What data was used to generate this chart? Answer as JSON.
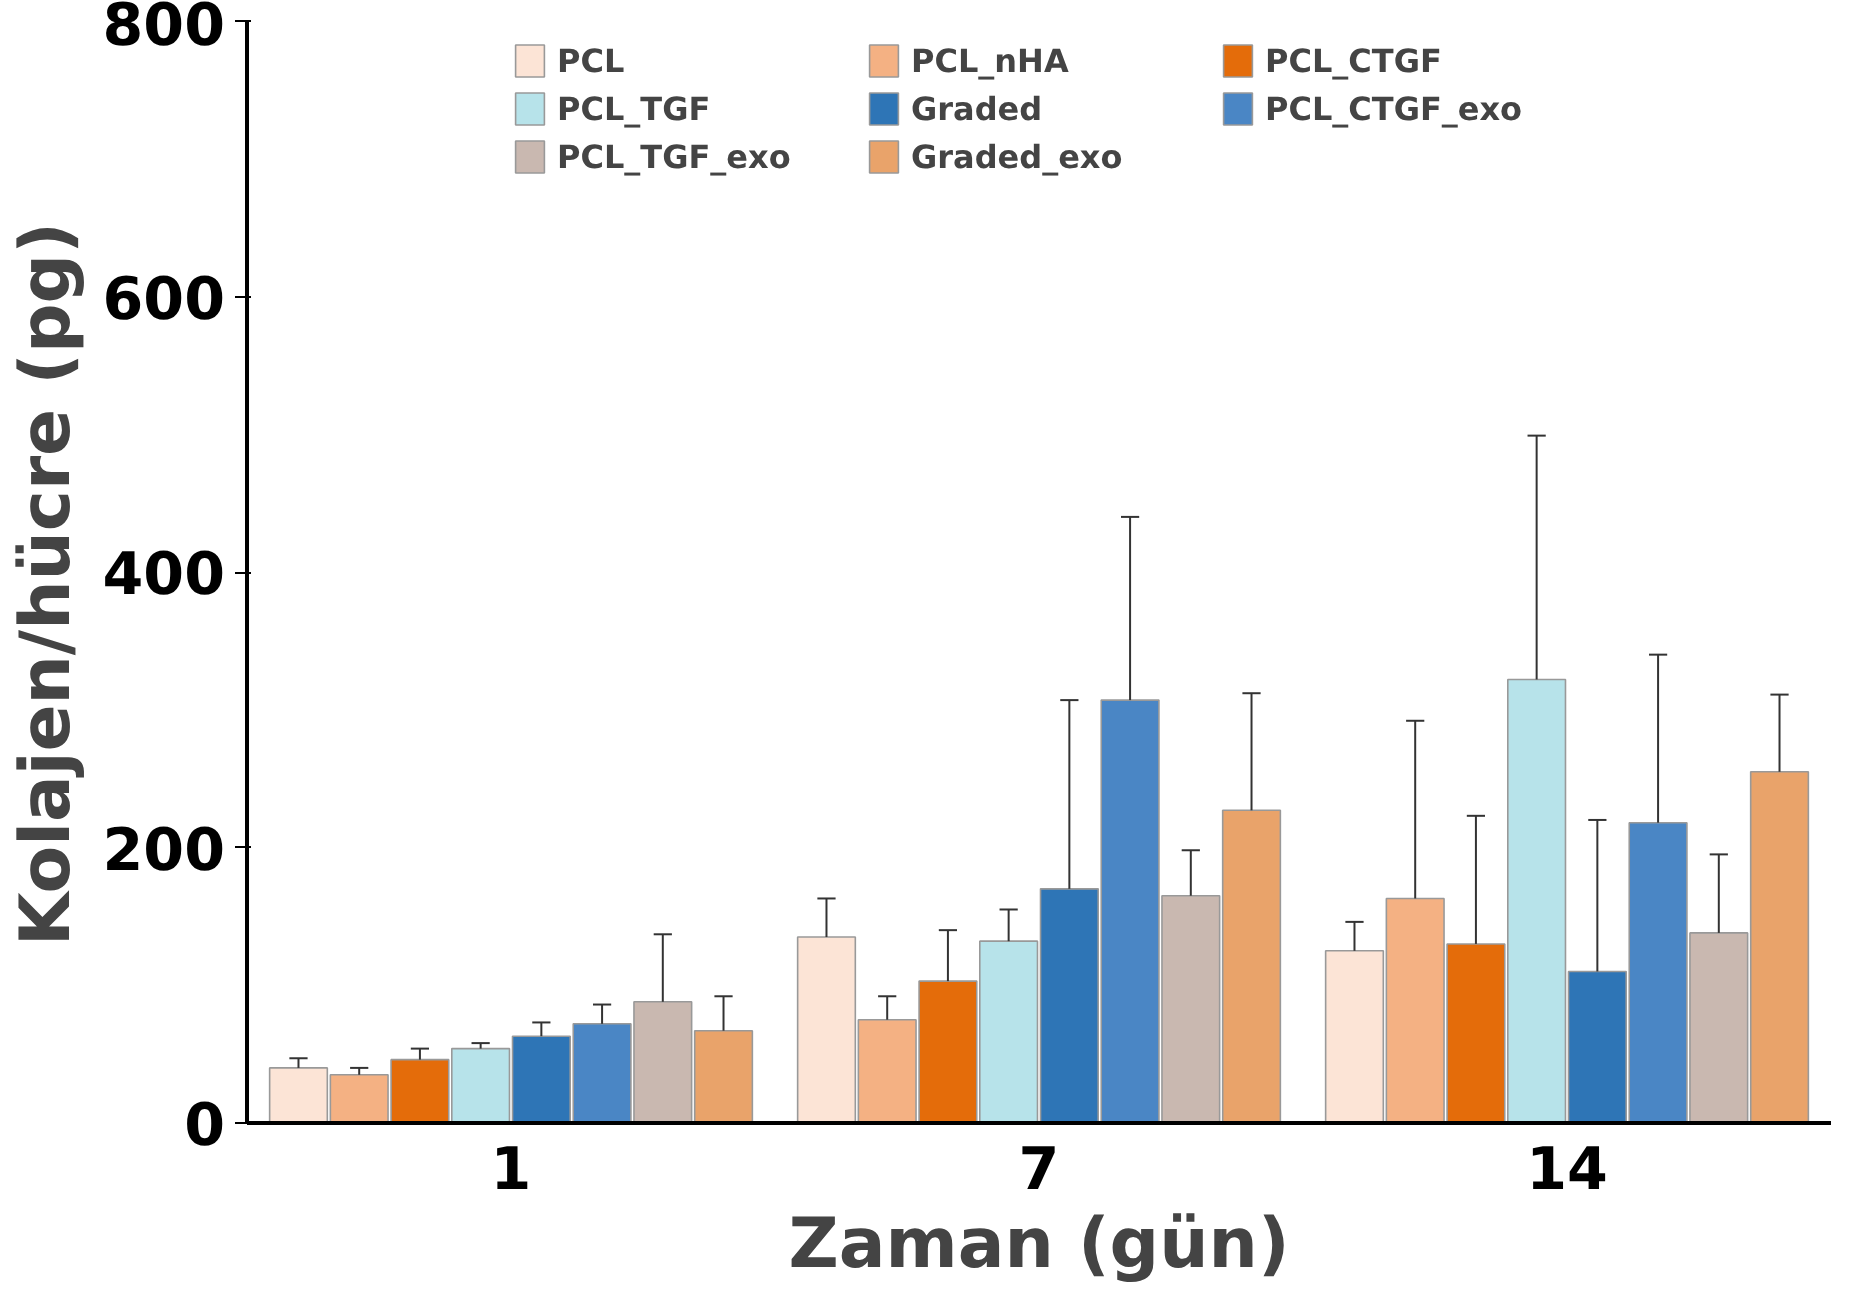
{
  "chart_data": {
    "type": "bar",
    "xlabel": "Zaman (gün)",
    "ylabel": "Kolajen/hücre  (pg)",
    "categories": [
      "1",
      "7",
      "14"
    ],
    "ylim": [
      0,
      800
    ],
    "yticks": [
      0,
      200,
      400,
      600,
      800
    ],
    "grid": false,
    "legend": "top",
    "series": [
      {
        "name": "PCL",
        "color": "#fce4d6",
        "values": [
          40,
          135,
          125
        ],
        "errors": [
          [
            40,
            47
          ],
          [
            135,
            163
          ],
          [
            125,
            146
          ]
        ]
      },
      {
        "name": "PCL_nHA",
        "color": "#f4b183",
        "values": [
          35,
          75,
          163
        ],
        "errors": [
          [
            35,
            40
          ],
          [
            75,
            92
          ],
          [
            163,
            292
          ]
        ]
      },
      {
        "name": "PCL_CTGF",
        "color": "#e46c0a",
        "values": [
          46,
          103,
          130
        ],
        "errors": [
          [
            46,
            54
          ],
          [
            103,
            140
          ],
          [
            130,
            223
          ]
        ]
      },
      {
        "name": "PCL_TGF",
        "color": "#b7e3ea",
        "values": [
          54,
          132,
          322
        ],
        "errors": [
          [
            54,
            58
          ],
          [
            132,
            155
          ],
          [
            322,
            499
          ]
        ]
      },
      {
        "name": "Graded",
        "color": "#2e75b6",
        "values": [
          63,
          170,
          110
        ],
        "errors": [
          [
            63,
            73
          ],
          [
            170,
            307
          ],
          [
            110,
            220
          ]
        ]
      },
      {
        "name": "PCL_CTGF_exo",
        "color": "#4a86c5",
        "values": [
          72,
          307,
          218
        ],
        "errors": [
          [
            72,
            86
          ],
          [
            307,
            440
          ],
          [
            218,
            340
          ]
        ]
      },
      {
        "name": "PCL_TGF_exo",
        "color": "#c9b8b0",
        "values": [
          88,
          165,
          138
        ],
        "errors": [
          [
            88,
            137
          ],
          [
            165,
            198
          ],
          [
            138,
            195
          ]
        ]
      },
      {
        "name": "Graded_exo",
        "color": "#e9a36a",
        "values": [
          67,
          227,
          255
        ],
        "errors": [
          [
            67,
            92
          ],
          [
            227,
            312
          ],
          [
            255,
            311
          ]
        ]
      }
    ]
  }
}
